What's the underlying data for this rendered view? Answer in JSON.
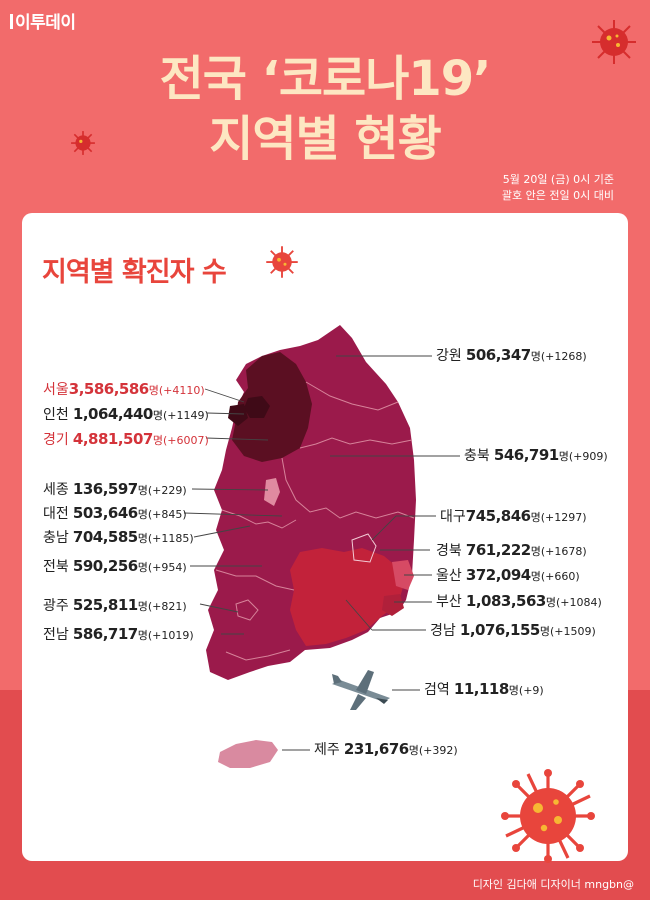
{
  "brand": "이투데이",
  "title": {
    "line1": "전국 ‘코로나19’",
    "line2": "지역별 현황"
  },
  "date_note": {
    "line1": "5월 20일 (금) 0시 기준",
    "line2": "괄호 안은 전일 0시 대비"
  },
  "section_title": "지역별 확진자 수",
  "unit": "명",
  "regions": [
    {
      "name": "서울",
      "count": "3,586,586",
      "change": "(+4110)",
      "highlight": true
    },
    {
      "name": "인천",
      "count": "1,064,440",
      "change": "(+1149)",
      "highlight": false
    },
    {
      "name": "경기",
      "count": "4,881,507",
      "change": "(+6007)",
      "highlight": true
    },
    {
      "name": "세종",
      "count": "136,597",
      "change": "(+229)",
      "highlight": false
    },
    {
      "name": "대전",
      "count": "503,646",
      "change": "(+845)",
      "highlight": false
    },
    {
      "name": "충남",
      "count": "704,585",
      "change": "(+1185)",
      "highlight": false
    },
    {
      "name": "전북",
      "count": "590,256",
      "change": "(+954)",
      "highlight": false
    },
    {
      "name": "광주",
      "count": "525,811",
      "change": "(+821)",
      "highlight": false
    },
    {
      "name": "전남",
      "count": "586,717",
      "change": "(+1019)",
      "highlight": false
    },
    {
      "name": "강원",
      "count": "506,347",
      "change": "(+1268)",
      "highlight": false
    },
    {
      "name": "충북",
      "count": "546,791",
      "change": "(+909)",
      "highlight": false
    },
    {
      "name": "대구",
      "count": "745,846",
      "change": "(+1297)",
      "highlight": false
    },
    {
      "name": "경북",
      "count": "761,222",
      "change": "(+1678)",
      "highlight": false
    },
    {
      "name": "울산",
      "count": "372,094",
      "change": "(+660)",
      "highlight": false
    },
    {
      "name": "부산",
      "count": "1,083,563",
      "change": "(+1084)",
      "highlight": false
    },
    {
      "name": "경남",
      "count": "1,076,155",
      "change": "(+1509)",
      "highlight": false
    },
    {
      "name": "검역",
      "count": "11,118",
      "change": "(+9)",
      "highlight": false
    },
    {
      "name": "제주",
      "count": "231,676",
      "change": "(+392)",
      "highlight": false
    }
  ],
  "credit": "디자인 김다애 디자이너 mngbn@",
  "colors": {
    "background": "#f26b6b",
    "card": "#ffffff",
    "title": "#fde7c2",
    "accent": "#e8453c",
    "map_base": "#9b1a4b",
    "map_capital": "#4a0d1a",
    "map_southeast": "#c2223a"
  },
  "icons": [
    "virus-icon",
    "airplane-icon"
  ]
}
